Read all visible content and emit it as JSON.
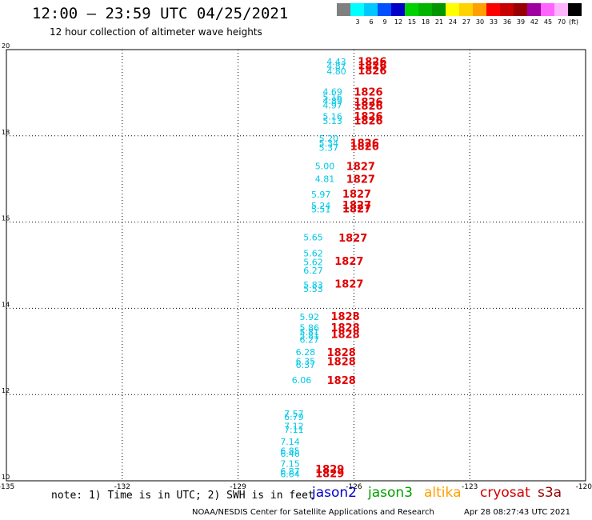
{
  "header": {
    "title": "12:00 – 23:59 UTC 04/25/2021",
    "subtitle": "12 hour collection of altimeter wave heights"
  },
  "colorbar": {
    "unit": "(ft)",
    "swatches": [
      {
        "label": "",
        "color": "#808080"
      },
      {
        "label": "3",
        "color": "#00ffff"
      },
      {
        "label": "6",
        "color": "#00c8ff"
      },
      {
        "label": "9",
        "color": "#0050ff"
      },
      {
        "label": "12",
        "color": "#0000c8"
      },
      {
        "label": "15",
        "color": "#00d200"
      },
      {
        "label": "18",
        "color": "#00b400"
      },
      {
        "label": "21",
        "color": "#009600"
      },
      {
        "label": "24",
        "color": "#ffff00"
      },
      {
        "label": "27",
        "color": "#ffd200"
      },
      {
        "label": "30",
        "color": "#ffa000"
      },
      {
        "label": "33",
        "color": "#ff0000"
      },
      {
        "label": "36",
        "color": "#c80000"
      },
      {
        "label": "39",
        "color": "#960000"
      },
      {
        "label": "42",
        "color": "#a000a0"
      },
      {
        "label": "45",
        "color": "#ff64ff"
      },
      {
        "label": "70",
        "color": "#ffb4ff"
      },
      {
        "label": "",
        "color": "#000000"
      }
    ]
  },
  "chart_data": {
    "type": "scatter",
    "xlim": [
      -135,
      -120
    ],
    "ylim": [
      10,
      20
    ],
    "x_ticks": [
      "-135",
      "-132",
      "-129",
      "-126",
      "-123",
      "-120"
    ],
    "x_tick_values": [
      -135,
      -132,
      -129,
      -126,
      -123,
      -120
    ],
    "y_ticks": [
      "20",
      "18",
      "16",
      "14",
      "12",
      "10"
    ],
    "y_tick_values": [
      20,
      18,
      16,
      14,
      12,
      10
    ],
    "grid": true,
    "wave_heights": [
      {
        "lon": -126.2,
        "lat": 19.72,
        "text": "4.43"
      },
      {
        "lon": -126.2,
        "lat": 19.62,
        "text": "4.87"
      },
      {
        "lon": -126.2,
        "lat": 19.5,
        "text": "4.80"
      },
      {
        "lon": -126.3,
        "lat": 19.03,
        "text": "4.69"
      },
      {
        "lon": -126.3,
        "lat": 18.9,
        "text": "5.16"
      },
      {
        "lon": -126.3,
        "lat": 18.81,
        "text": "4.89"
      },
      {
        "lon": -126.3,
        "lat": 18.71,
        "text": "4.97"
      },
      {
        "lon": -126.3,
        "lat": 18.45,
        "text": "5.16"
      },
      {
        "lon": -126.3,
        "lat": 18.35,
        "text": "5.13"
      },
      {
        "lon": -126.4,
        "lat": 17.94,
        "text": "5.20"
      },
      {
        "lon": -126.4,
        "lat": 17.83,
        "text": "5.34"
      },
      {
        "lon": -126.4,
        "lat": 17.73,
        "text": "5.37"
      },
      {
        "lon": -126.5,
        "lat": 17.3,
        "text": "5.00"
      },
      {
        "lon": -126.5,
        "lat": 17.0,
        "text": "4.81"
      },
      {
        "lon": -126.6,
        "lat": 16.64,
        "text": "5.97"
      },
      {
        "lon": -126.6,
        "lat": 16.38,
        "text": "5.24"
      },
      {
        "lon": -126.6,
        "lat": 16.3,
        "text": "5.51"
      },
      {
        "lon": -126.8,
        "lat": 15.65,
        "text": "5.65"
      },
      {
        "lon": -126.8,
        "lat": 15.28,
        "text": "5.62"
      },
      {
        "lon": -126.8,
        "lat": 15.07,
        "text": "5.62"
      },
      {
        "lon": -126.8,
        "lat": 14.88,
        "text": "6.27"
      },
      {
        "lon": -126.8,
        "lat": 14.55,
        "text": "5.83"
      },
      {
        "lon": -126.8,
        "lat": 14.45,
        "text": "5.53"
      },
      {
        "lon": -126.9,
        "lat": 13.8,
        "text": "5.92"
      },
      {
        "lon": -126.9,
        "lat": 13.55,
        "text": "5.86"
      },
      {
        "lon": -126.9,
        "lat": 13.45,
        "text": "5.81"
      },
      {
        "lon": -126.9,
        "lat": 13.37,
        "text": "5.81"
      },
      {
        "lon": -126.9,
        "lat": 13.27,
        "text": "6.27"
      },
      {
        "lon": -127.0,
        "lat": 12.99,
        "text": "6.28"
      },
      {
        "lon": -127.0,
        "lat": 12.77,
        "text": "6.35"
      },
      {
        "lon": -127.0,
        "lat": 12.69,
        "text": "6.37"
      },
      {
        "lon": -127.1,
        "lat": 12.34,
        "text": "6.06"
      },
      {
        "lon": -127.3,
        "lat": 11.56,
        "text": "7.57"
      },
      {
        "lon": -127.3,
        "lat": 11.48,
        "text": "6.79"
      },
      {
        "lon": -127.3,
        "lat": 11.27,
        "text": "7.12"
      },
      {
        "lon": -127.3,
        "lat": 11.19,
        "text": "7.11"
      },
      {
        "lon": -127.4,
        "lat": 10.91,
        "text": "7.14"
      },
      {
        "lon": -127.4,
        "lat": 10.7,
        "text": "6.85"
      },
      {
        "lon": -127.4,
        "lat": 10.63,
        "text": "6.46"
      },
      {
        "lon": -127.4,
        "lat": 10.4,
        "text": "7.15"
      },
      {
        "lon": -127.4,
        "lat": 10.22,
        "text": "6.87"
      },
      {
        "lon": -127.4,
        "lat": 10.16,
        "text": "6.64"
      }
    ],
    "passes": [
      {
        "lon": -125.9,
        "lat": 19.73,
        "text": "1826"
      },
      {
        "lon": -125.9,
        "lat": 19.64,
        "text": "1826"
      },
      {
        "lon": -125.9,
        "lat": 19.52,
        "text": "1826"
      },
      {
        "lon": -126.0,
        "lat": 19.03,
        "text": "1826"
      },
      {
        "lon": -126.0,
        "lat": 18.79,
        "text": "1826"
      },
      {
        "lon": -126.0,
        "lat": 18.7,
        "text": "1826"
      },
      {
        "lon": -126.0,
        "lat": 18.46,
        "text": "1826"
      },
      {
        "lon": -126.0,
        "lat": 18.36,
        "text": "1826"
      },
      {
        "lon": -126.1,
        "lat": 17.84,
        "text": "1826"
      },
      {
        "lon": -126.1,
        "lat": 17.76,
        "text": "1826"
      },
      {
        "lon": -126.2,
        "lat": 17.3,
        "text": "1827"
      },
      {
        "lon": -126.2,
        "lat": 17.0,
        "text": "1827"
      },
      {
        "lon": -126.3,
        "lat": 16.66,
        "text": "1827"
      },
      {
        "lon": -126.3,
        "lat": 16.4,
        "text": "1827"
      },
      {
        "lon": -126.3,
        "lat": 16.32,
        "text": "1827"
      },
      {
        "lon": -126.4,
        "lat": 15.64,
        "text": "1827"
      },
      {
        "lon": -126.5,
        "lat": 15.1,
        "text": "1827"
      },
      {
        "lon": -126.5,
        "lat": 14.57,
        "text": "1827"
      },
      {
        "lon": -126.6,
        "lat": 13.82,
        "text": "1828"
      },
      {
        "lon": -126.6,
        "lat": 13.56,
        "text": "1828"
      },
      {
        "lon": -126.6,
        "lat": 13.4,
        "text": "1828"
      },
      {
        "lon": -126.7,
        "lat": 12.99,
        "text": "1828"
      },
      {
        "lon": -126.7,
        "lat": 12.77,
        "text": "1828"
      },
      {
        "lon": -126.7,
        "lat": 12.34,
        "text": "1828"
      },
      {
        "lon": -127.0,
        "lat": 10.28,
        "text": "1829"
      },
      {
        "lon": -127.0,
        "lat": 10.18,
        "text": "1829"
      }
    ],
    "wave_color": "#00c8e6",
    "pass_color": "#e00000"
  },
  "footer": {
    "note": "note: 1) Time is in UTC; 2) SWH is in feet",
    "satellites": [
      {
        "label": "jason2",
        "color": "#0000d2"
      },
      {
        "label": "jason3",
        "color": "#00a000"
      },
      {
        "label": "altika",
        "color": "#ffa000"
      },
      {
        "label": "cryosat",
        "color": "#d20000"
      },
      {
        "label": "s3a",
        "color": "#960000"
      }
    ],
    "credit": "NOAA/NESDIS Center for Satellite Applications and Research",
    "timestamp": "Apr 28 08:27:43 UTC 2021"
  }
}
